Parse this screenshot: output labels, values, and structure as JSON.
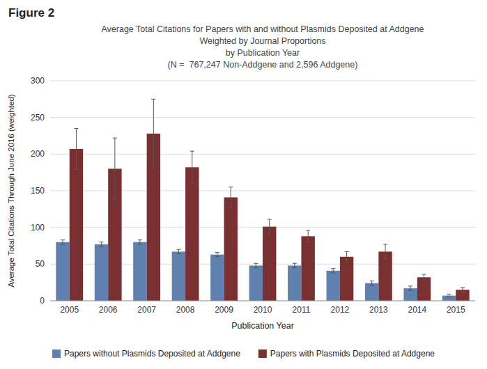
{
  "chart_data": {
    "type": "bar",
    "annotations": [
      "Figure 2"
    ],
    "title": [
      "Average Total Citations for Papers with and without Plasmids Deposited at Addgene",
      "Weighted by Journal Proportions",
      "by Publication Year",
      "(N =  767,247 Non-Addgene and 2,596 Addgene)"
    ],
    "x_label": "Publication Year",
    "y_label": "Average Total Citations Through June 2016 (weighted)",
    "categories": [
      "2005",
      "2006",
      "2007",
      "2008",
      "2009",
      "2010",
      "2011",
      "2012",
      "2013",
      "2014",
      "2015"
    ],
    "series": [
      {
        "name": "Papers without Plasmids Deposited at Addgene",
        "color": "#6080b0",
        "values": [
          80,
          77,
          80,
          67,
          63,
          48,
          48,
          41,
          24,
          17,
          7
        ],
        "errors": [
          3,
          3,
          3,
          3,
          3,
          3,
          3,
          3,
          3,
          3,
          2
        ]
      },
      {
        "name": "Papers with Plasmids Deposited at Addgene",
        "color": "#7a3030",
        "values": [
          207,
          180,
          228,
          182,
          141,
          101,
          88,
          60,
          67,
          32,
          15
        ],
        "errors": [
          28,
          42,
          47,
          22,
          14,
          10,
          8,
          7,
          10,
          4,
          3
        ]
      }
    ],
    "ylim": [
      0,
      300
    ],
    "yticks": [
      0,
      50,
      100,
      150,
      200,
      250,
      300
    ],
    "grid": true,
    "legend": "bottom"
  }
}
